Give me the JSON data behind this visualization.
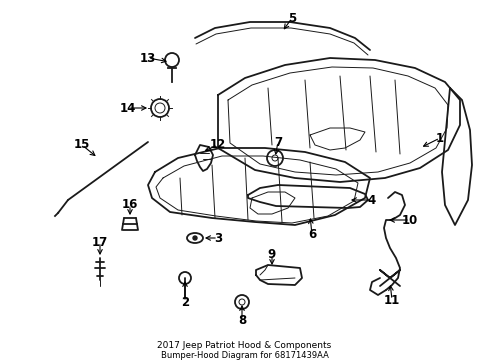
{
  "title": "2017 Jeep Patriot Hood & Components\nBumper-Hood Diagram for 68171439AA",
  "background_color": "#ffffff",
  "line_color": "#1a1a1a",
  "text_color": "#000000",
  "figsize": [
    4.89,
    3.6
  ],
  "dpi": 100,
  "label_fontsize": 8.5
}
